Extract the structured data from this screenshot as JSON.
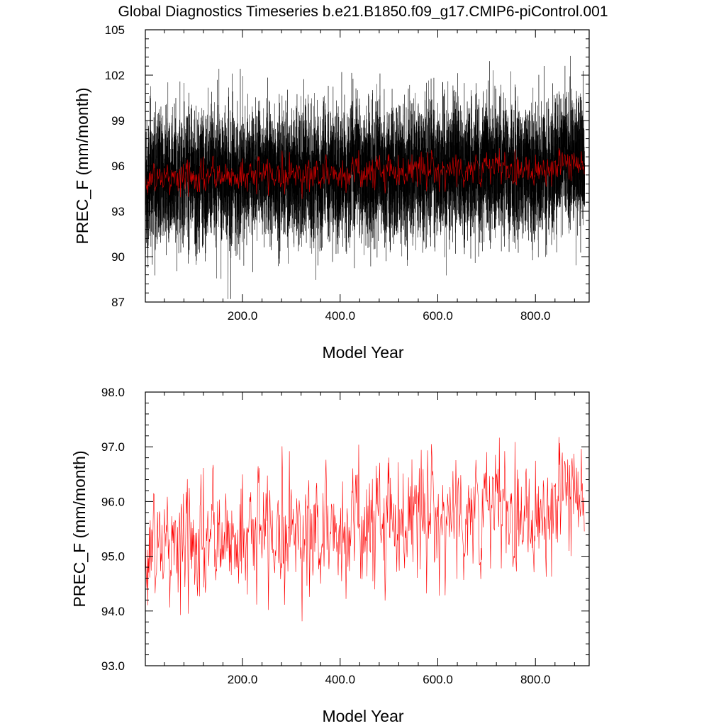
{
  "figure": {
    "title": "Global Diagnostics Timeseries b.e21.B1850.f09_g17.CMIP6-piControl.001"
  },
  "chart_data": [
    {
      "type": "line",
      "panel": "top",
      "title": "Global Diagnostics Timeseries b.e21.B1850.f09_g17.CMIP6-piControl.001",
      "xlabel": "Model Year",
      "ylabel": "PREC_F (mm/month)",
      "xlim": [
        1,
        910
      ],
      "ylim": [
        87,
        105
      ],
      "x_ticks": [
        200,
        400,
        600,
        800
      ],
      "x_tick_labels": [
        "200.0",
        "400.0",
        "600.0",
        "800.0"
      ],
      "y_ticks": [
        87,
        90,
        93,
        96,
        99,
        102,
        105
      ],
      "y_tick_labels": [
        "87",
        "90",
        "93",
        "96",
        "99",
        "102",
        "105"
      ],
      "grid": false,
      "series": [
        {
          "kind": "monthly",
          "color": "#000000",
          "n_points": 10800,
          "x_start": 1,
          "x_end": 901,
          "mean": 95.6,
          "spread": [
            89,
            103
          ],
          "min": 87.2,
          "max": 104.0
        },
        {
          "kind": "annual",
          "color": "#cc0000",
          "n_points": 900,
          "x_start": 1,
          "x_end": 900,
          "mean": 95.6,
          "min": 93.2,
          "max": 97.8
        }
      ]
    },
    {
      "type": "line",
      "panel": "bottom",
      "xlabel": "Model Year",
      "ylabel": "PREC_F (mm/month)",
      "xlim": [
        1,
        910
      ],
      "ylim": [
        93,
        98
      ],
      "x_ticks": [
        200,
        400,
        600,
        800
      ],
      "x_tick_labels": [
        "200.0",
        "400.0",
        "600.0",
        "800.0"
      ],
      "y_ticks": [
        93,
        94,
        95,
        96,
        97,
        98
      ],
      "y_tick_labels": [
        "93.0",
        "94.0",
        "95.0",
        "96.0",
        "97.0",
        "98.0"
      ],
      "grid": false,
      "series": [
        {
          "kind": "annual",
          "color": "#ff0000",
          "n_points": 900,
          "x_start": 1,
          "x_end": 900,
          "trend": [
            [
              1,
              95.2
            ],
            [
              100,
              95.2
            ],
            [
              200,
              95.4
            ],
            [
              300,
              95.5
            ],
            [
              400,
              95.5
            ],
            [
              500,
              95.7
            ],
            [
              600,
              95.8
            ],
            [
              700,
              95.8
            ],
            [
              800,
              95.9
            ],
            [
              900,
              96.0
            ]
          ],
          "min": 93.2,
          "max": 97.8
        }
      ]
    }
  ]
}
